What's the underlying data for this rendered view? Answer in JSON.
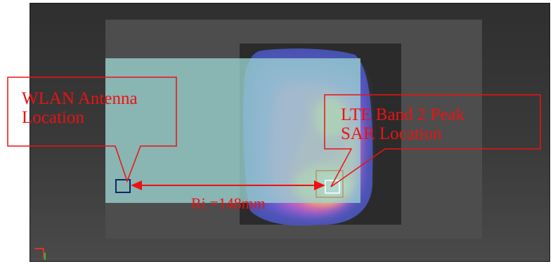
{
  "callouts": {
    "wlan": {
      "line1": "WLAN Antenna",
      "line2": "Location"
    },
    "lte": {
      "line1": "LTE Band 2 Peak",
      "line2": "SAR Location"
    }
  },
  "distance_label": "Ri =148mm",
  "colors": {
    "annotation": "#ee1111",
    "wlan_marker": "#0b2a66",
    "device_overlay": "#9ad2d0",
    "phantom": "#525252",
    "background": "#363636"
  },
  "icons": {
    "axis_triad": "axis-triad-icon"
  }
}
